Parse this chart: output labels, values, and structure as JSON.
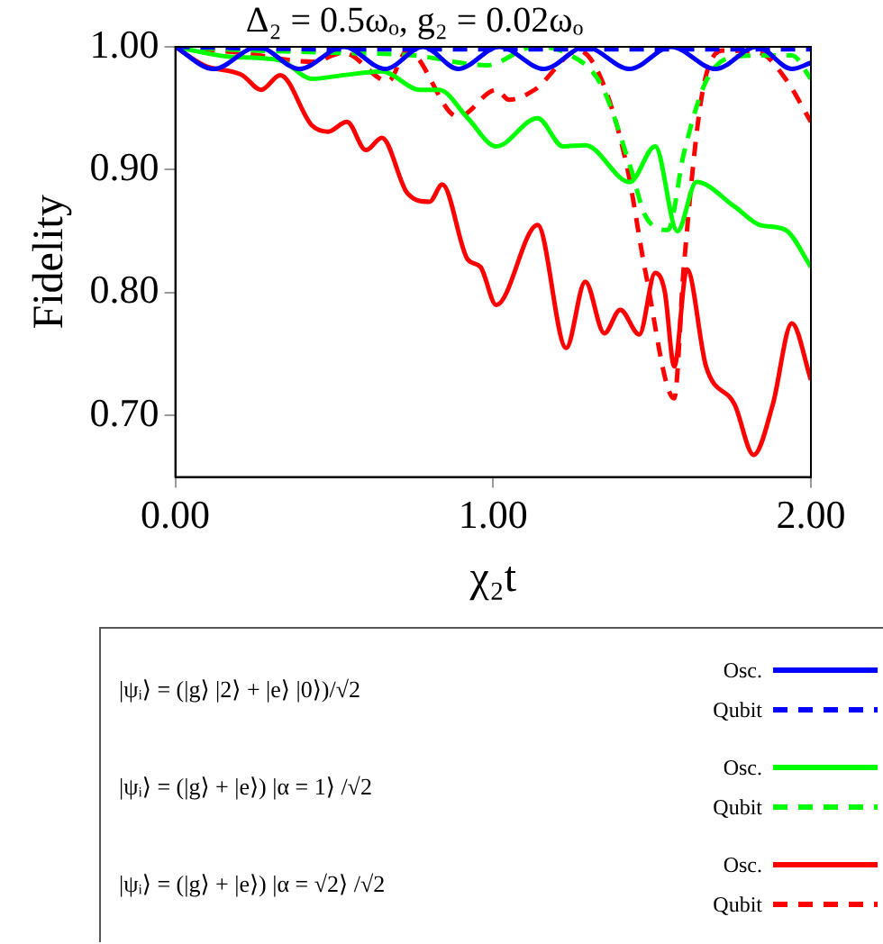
{
  "chart_data": {
    "type": "line",
    "title": "Δ₂ = 0.5ωₒ, g₂ = 0.02ωₒ",
    "xlabel": "χ₂t",
    "ylabel": "Fidelity",
    "xlim": [
      0,
      2
    ],
    "xticks": [
      {
        "value": 0,
        "label": "0.00"
      },
      {
        "value": 1,
        "label": "1.00"
      },
      {
        "value": 2,
        "label": "2.00"
      }
    ],
    "ylim": [
      0.65,
      1.0
    ],
    "yticks": [
      {
        "value": 0.7,
        "label": "0.70"
      },
      {
        "value": 0.8,
        "label": "0.80"
      },
      {
        "value": 0.9,
        "label": "0.90"
      },
      {
        "value": 1.0,
        "label": "1.00"
      }
    ],
    "legend": "bottom",
    "marker": "none",
    "annotations": [
      "|ψᵢ⟩ = (|g⟩ |2⟩ + |e⟩ |0⟩)/√2",
      "|ψᵢ⟩ = (|g⟩ + |e⟩) |α = 1⟩ /√2",
      "|ψᵢ⟩ = (|g⟩ + |e⟩) |α = √2⟩ /√2"
    ],
    "series": [
      {
        "name": "Osc.",
        "color": "#0000ff",
        "line_style": "solid",
        "x": [
          0,
          0.12,
          0.26,
          0.39,
          0.53,
          0.66,
          0.78,
          0.89,
          1.02,
          1.16,
          1.29,
          1.43,
          1.56,
          1.7,
          1.83,
          1.94,
          2.0
        ],
        "values": [
          1.0,
          0.982,
          1.0,
          0.982,
          1.0,
          0.982,
          1.0,
          0.982,
          1.0,
          0.982,
          1.0,
          0.982,
          1.0,
          0.982,
          1.0,
          0.982,
          0.987
        ]
      },
      {
        "name": "Qubit",
        "color": "#0000ff",
        "line_style": "dashed",
        "x": [
          0,
          0.5,
          1.0,
          1.5,
          2.0
        ],
        "values": [
          1.0,
          0.998,
          0.998,
          0.998,
          0.998
        ]
      },
      {
        "name": "Osc.",
        "color": "#00ff00",
        "line_style": "solid",
        "x": [
          0,
          0.17,
          0.33,
          0.43,
          0.53,
          0.65,
          0.77,
          0.83,
          0.92,
          1.01,
          1.14,
          1.22,
          1.29,
          1.43,
          1.51,
          1.58,
          1.64,
          1.76,
          1.84,
          1.92,
          2.0
        ],
        "values": [
          1.0,
          0.992,
          0.989,
          0.974,
          0.977,
          0.98,
          0.965,
          0.965,
          0.942,
          0.919,
          0.942,
          0.919,
          0.92,
          0.89,
          0.919,
          0.85,
          0.89,
          0.87,
          0.855,
          0.851,
          0.821
        ]
      },
      {
        "name": "Qubit",
        "color": "#00ff00",
        "line_style": "dashed",
        "x": [
          0,
          0.25,
          0.53,
          0.75,
          0.98,
          1.13,
          1.23,
          1.34,
          1.43,
          1.48,
          1.55,
          1.6,
          1.67,
          1.76,
          1.84,
          1.94,
          2.0
        ],
        "values": [
          1.0,
          0.997,
          0.995,
          0.993,
          0.985,
          1.0,
          0.995,
          0.969,
          0.904,
          0.862,
          0.851,
          0.913,
          0.972,
          0.992,
          0.993,
          0.993,
          0.974
        ]
      },
      {
        "name": "Osc.",
        "color": "#ff0000",
        "line_style": "solid",
        "x": [
          0,
          0.09,
          0.21,
          0.27,
          0.33,
          0.43,
          0.48,
          0.54,
          0.6,
          0.65,
          0.73,
          0.8,
          0.84,
          0.92,
          0.96,
          1.01,
          1.14,
          1.23,
          1.29,
          1.35,
          1.4,
          1.46,
          1.51,
          1.54,
          1.57,
          1.61,
          1.67,
          1.76,
          1.82,
          1.88,
          1.94,
          2.0
        ],
        "values": [
          1.0,
          0.985,
          0.977,
          0.965,
          0.977,
          0.936,
          0.931,
          0.939,
          0.916,
          0.926,
          0.881,
          0.874,
          0.888,
          0.827,
          0.821,
          0.79,
          0.855,
          0.755,
          0.809,
          0.767,
          0.786,
          0.766,
          0.816,
          0.801,
          0.74,
          0.819,
          0.74,
          0.709,
          0.668,
          0.709,
          0.775,
          0.729
        ]
      },
      {
        "name": "Qubit",
        "color": "#ff0000",
        "line_style": "dashed",
        "x": [
          0,
          0.21,
          0.43,
          0.53,
          0.67,
          0.73,
          0.89,
          1.01,
          1.05,
          1.13,
          1.27,
          1.34,
          1.42,
          1.48,
          1.57,
          1.6,
          1.66,
          1.73,
          1.84,
          1.92,
          2.0
        ],
        "values": [
          1.0,
          0.995,
          0.988,
          0.995,
          0.972,
          0.997,
          0.943,
          0.965,
          0.957,
          0.965,
          0.997,
          0.974,
          0.904,
          0.816,
          0.714,
          0.821,
          0.965,
          0.997,
          0.995,
          0.974,
          0.939
        ]
      }
    ]
  }
}
